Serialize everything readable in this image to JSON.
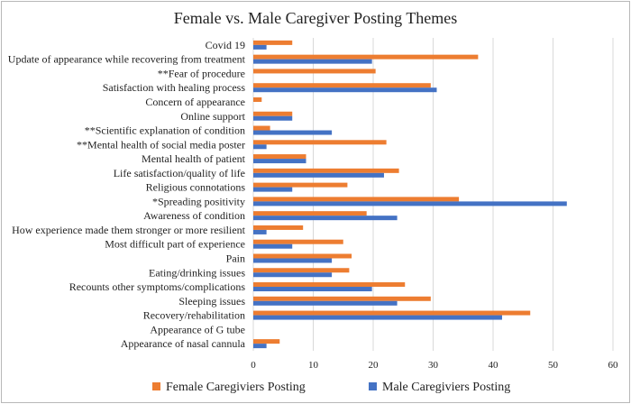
{
  "chart_data": {
    "type": "bar",
    "orientation": "horizontal",
    "title": "Female vs. Male Caregiver Posting Themes",
    "xlabel": "",
    "ylabel": "",
    "xlim": [
      0,
      60
    ],
    "xticks": [
      0,
      10,
      20,
      30,
      40,
      50,
      60
    ],
    "grid": true,
    "legend_position": "bottom",
    "categories": [
      "Covid 19",
      "Update of appearance while recovering from treatment",
      "**Fear of procedure",
      "Satisfaction with healing process",
      "Concern of appearance",
      "Online support",
      "**Scientific explanation of condition",
      "**Mental health of social media poster",
      "Mental health of patient",
      "Life satisfaction/quality of life",
      "Religious connotations",
      "*Spreading positivity",
      "Awareness of condition",
      "How experience made them stronger or more resilient",
      "Most difficult part of experience",
      "Pain",
      "Eating/drinking issues",
      "Recounts other symptoms/complications",
      "Sleeping issues",
      "Recovery/rehabilitation",
      "Appearance of G tube",
      "Appearance of nasal cannula"
    ],
    "series": [
      {
        "name": "Female Caregiviers Posting",
        "color": "#ED7D31",
        "values": [
          6.5,
          37.5,
          20.4,
          29.6,
          1.4,
          6.5,
          2.8,
          22.2,
          8.8,
          24.3,
          15.7,
          34.3,
          18.9,
          8.3,
          15.0,
          16.4,
          16.0,
          25.3,
          29.6,
          46.2,
          0,
          4.4
        ]
      },
      {
        "name": "Male Caregiviers Posting",
        "color": "#4472C4",
        "values": [
          2.2,
          19.8,
          0,
          30.6,
          0,
          6.5,
          13.1,
          2.2,
          8.8,
          21.8,
          6.5,
          52.3,
          24.0,
          2.2,
          6.5,
          13.1,
          13.1,
          19.8,
          24.0,
          41.5,
          0,
          2.2
        ]
      }
    ]
  }
}
